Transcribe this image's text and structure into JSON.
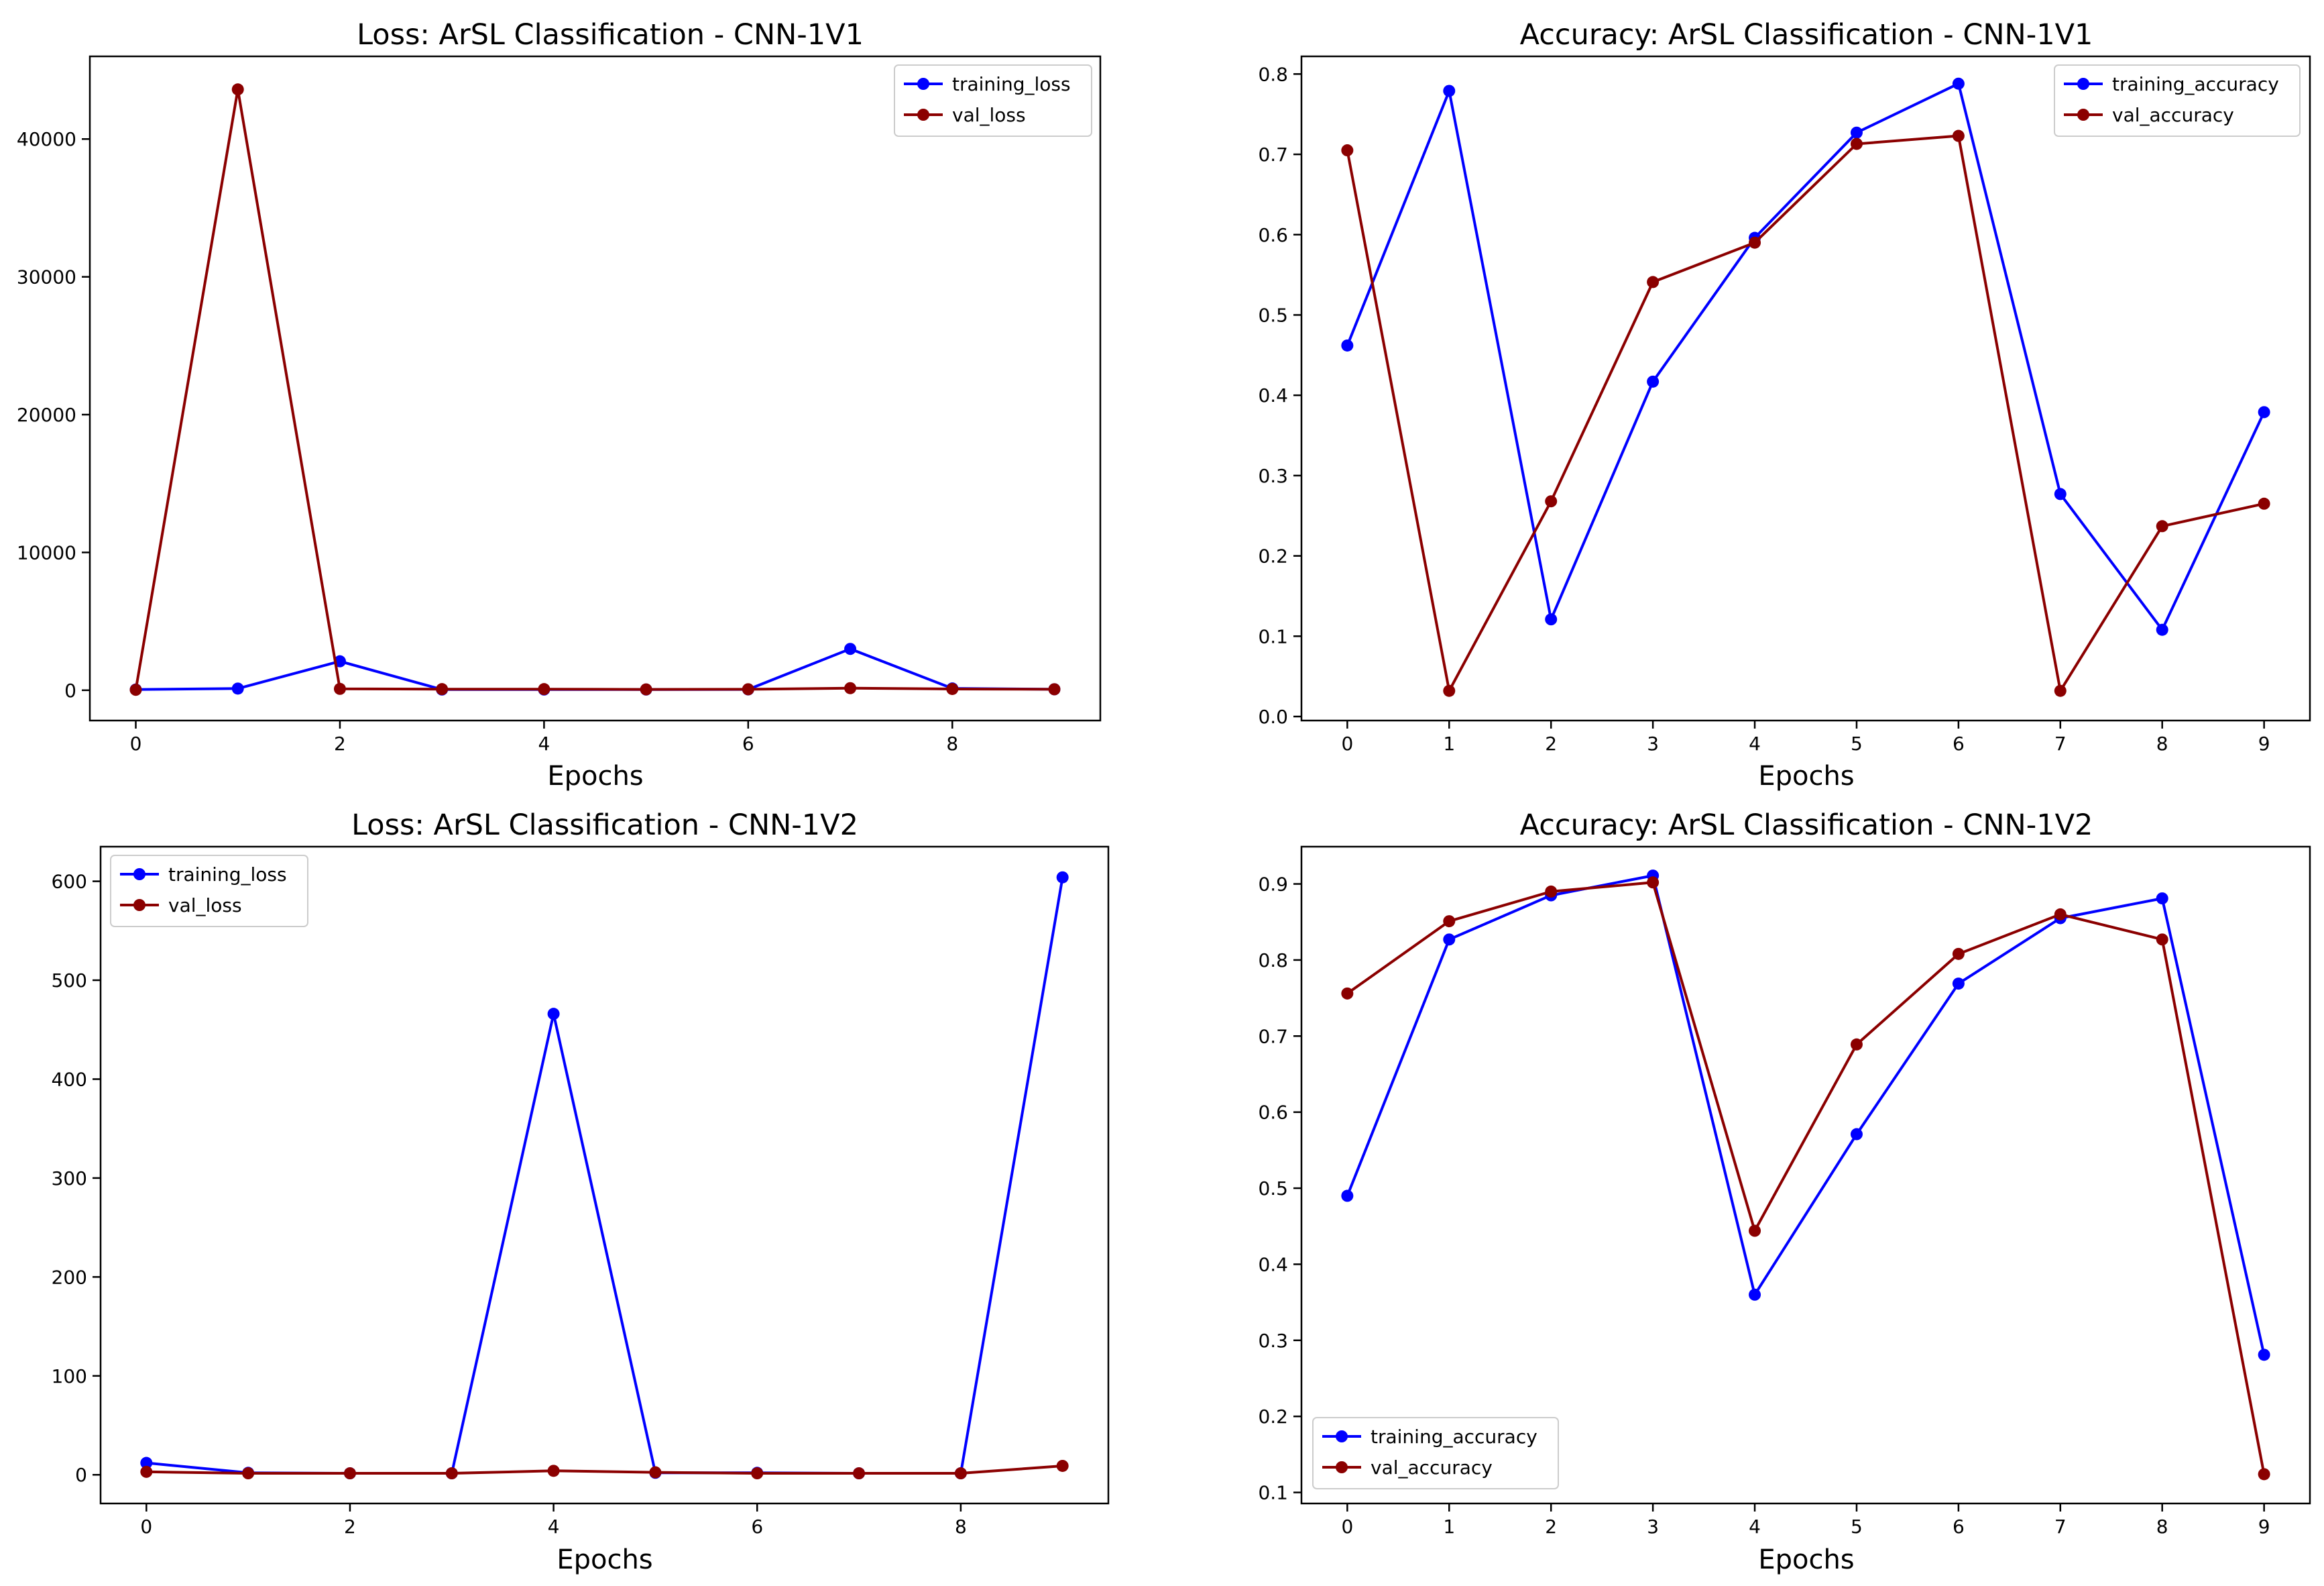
{
  "chart_data": [
    {
      "type": "line",
      "title": "Loss: ArSL Classification - CNN-1V1",
      "xlabel": "Epochs",
      "ylabel": "",
      "x": [
        0,
        1,
        2,
        3,
        4,
        5,
        6,
        7,
        8,
        9
      ],
      "xlim": [
        -0.45,
        9.45
      ],
      "ylim": [
        -2200,
        46000
      ],
      "xticks": [
        "0",
        "2",
        "4",
        "6",
        "8"
      ],
      "xtick_values": [
        0,
        2,
        4,
        6,
        8
      ],
      "yticks": [
        "0",
        "10000",
        "20000",
        "30000",
        "40000"
      ],
      "ytick_values": [
        0,
        10000,
        20000,
        30000,
        40000
      ],
      "legend_position": "upper right",
      "series": [
        {
          "name": "training_loss",
          "color": "#0000ff",
          "values": [
            50,
            120,
            2100,
            50,
            50,
            50,
            60,
            3000,
            130,
            70
          ]
        },
        {
          "name": "val_loss",
          "color": "#8b0000",
          "values": [
            30,
            43600,
            100,
            80,
            80,
            60,
            70,
            150,
            90,
            70
          ]
        }
      ]
    },
    {
      "type": "line",
      "title": "Accuracy: ArSL Classification - CNN-1V1",
      "xlabel": "Epochs",
      "ylabel": "",
      "x": [
        0,
        1,
        2,
        3,
        4,
        5,
        6,
        7,
        8,
        9
      ],
      "xlim": [
        -0.45,
        9.45
      ],
      "ylim": [
        -0.005,
        0.822
      ],
      "xticks": [
        "0",
        "1",
        "2",
        "3",
        "4",
        "5",
        "6",
        "7",
        "8",
        "9"
      ],
      "xtick_values": [
        0,
        1,
        2,
        3,
        4,
        5,
        6,
        7,
        8,
        9
      ],
      "yticks": [
        "0.0",
        "0.1",
        "0.2",
        "0.3",
        "0.4",
        "0.5",
        "0.6",
        "0.7",
        "0.8"
      ],
      "ytick_values": [
        0,
        0.1,
        0.2,
        0.3,
        0.4,
        0.5,
        0.6,
        0.7,
        0.8
      ],
      "legend_position": "upper right",
      "series": [
        {
          "name": "training_accuracy",
          "color": "#0000ff",
          "values": [
            0.462,
            0.779,
            0.121,
            0.417,
            0.596,
            0.727,
            0.788,
            0.277,
            0.108,
            0.379
          ]
        },
        {
          "name": "val_accuracy",
          "color": "#8b0000",
          "values": [
            0.705,
            0.032,
            0.268,
            0.541,
            0.59,
            0.713,
            0.723,
            0.032,
            0.237,
            0.265
          ]
        }
      ]
    },
    {
      "type": "line",
      "title": "Loss: ArSL Classification - CNN-1V2",
      "xlabel": "Epochs",
      "ylabel": "",
      "x": [
        0,
        1,
        2,
        3,
        4,
        5,
        6,
        7,
        8,
        9
      ],
      "xlim": [
        -0.45,
        9.45
      ],
      "ylim": [
        -29,
        635
      ],
      "xticks": [
        "0",
        "2",
        "4",
        "6",
        "8"
      ],
      "xtick_values": [
        0,
        2,
        4,
        6,
        8
      ],
      "yticks": [
        "0",
        "100",
        "200",
        "300",
        "400",
        "500",
        "600"
      ],
      "ytick_values": [
        0,
        100,
        200,
        300,
        400,
        500,
        600
      ],
      "legend_position": "upper left",
      "series": [
        {
          "name": "training_loss",
          "color": "#0000ff",
          "values": [
            12,
            2,
            1.5,
            1.5,
            466,
            2,
            2,
            1.5,
            1.5,
            604
          ]
        },
        {
          "name": "val_loss",
          "color": "#8b0000",
          "values": [
            3,
            1.5,
            1.5,
            1.5,
            4,
            2.5,
            1.5,
            1.5,
            1.5,
            9
          ]
        }
      ]
    },
    {
      "type": "line",
      "title": "Accuracy: ArSL Classification - CNN-1V2",
      "xlabel": "Epochs",
      "ylabel": "",
      "x": [
        0,
        1,
        2,
        3,
        4,
        5,
        6,
        7,
        8,
        9
      ],
      "xlim": [
        -0.45,
        9.45
      ],
      "ylim": [
        0.0855,
        0.949
      ],
      "xticks": [
        "0",
        "1",
        "2",
        "3",
        "4",
        "5",
        "6",
        "7",
        "8",
        "9"
      ],
      "xtick_values": [
        0,
        1,
        2,
        3,
        4,
        5,
        6,
        7,
        8,
        9
      ],
      "yticks": [
        "0.1",
        "0.2",
        "0.3",
        "0.4",
        "0.5",
        "0.6",
        "0.7",
        "0.8",
        "0.9"
      ],
      "ytick_values": [
        0.1,
        0.2,
        0.3,
        0.4,
        0.5,
        0.6,
        0.7,
        0.8,
        0.9
      ],
      "legend_position": "lower left",
      "series": [
        {
          "name": "training_accuracy",
          "color": "#0000ff",
          "values": [
            0.49,
            0.827,
            0.885,
            0.911,
            0.36,
            0.571,
            0.769,
            0.855,
            0.881,
            0.281
          ]
        },
        {
          "name": "val_accuracy",
          "color": "#8b0000",
          "values": [
            0.756,
            0.851,
            0.89,
            0.902,
            0.444,
            0.689,
            0.808,
            0.86,
            0.827,
            0.124
          ]
        }
      ]
    }
  ]
}
